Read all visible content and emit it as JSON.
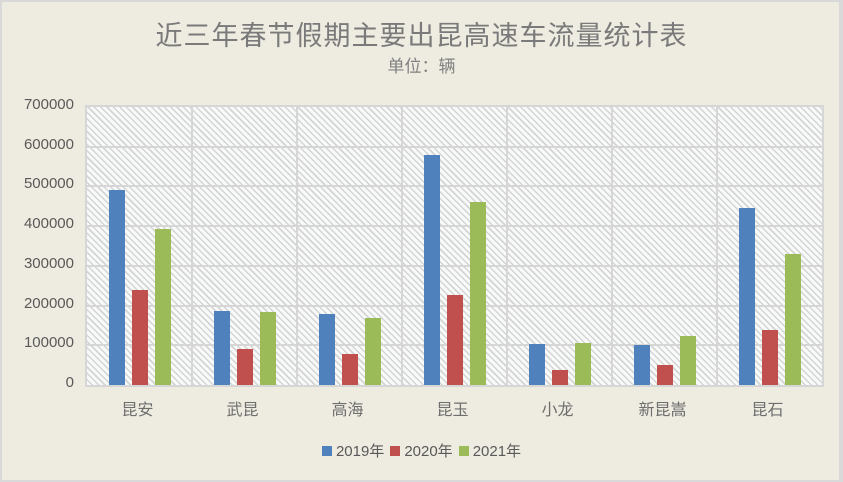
{
  "chart": {
    "title": "近三年春节假期主要出昆高速车流量统计表",
    "subtitle": "单位：辆",
    "y_ticks": [
      "700000",
      "600000",
      "500000",
      "400000",
      "300000",
      "200000",
      "100000",
      "0"
    ],
    "legend": [
      {
        "label": "2019年",
        "color": "#4f81bd"
      },
      {
        "label": "2020年",
        "color": "#c0504d"
      },
      {
        "label": "2021年",
        "color": "#9bbb59"
      }
    ]
  },
  "chart_data": {
    "type": "bar",
    "title": "近三年春节假期主要出昆高速车流量统计表",
    "subtitle": "单位：辆",
    "xlabel": "",
    "ylabel": "",
    "ylim": [
      0,
      700000
    ],
    "y_tick_step": 100000,
    "grid": true,
    "legend_position": "bottom",
    "categories": [
      "昆安",
      "武昆",
      "高海",
      "昆玉",
      "小龙",
      "新昆嵩",
      "昆石"
    ],
    "series": [
      {
        "name": "2019年",
        "color": "#4f81bd",
        "values": [
          491000,
          186000,
          179000,
          579000,
          103000,
          101000,
          446000
        ]
      },
      {
        "name": "2020年",
        "color": "#c0504d",
        "values": [
          239000,
          91000,
          78000,
          227000,
          38000,
          50000,
          139000
        ]
      },
      {
        "name": "2021年",
        "color": "#9bbb59",
        "values": [
          393000,
          184000,
          169000,
          461000,
          106000,
          123000,
          330000
        ]
      }
    ]
  }
}
